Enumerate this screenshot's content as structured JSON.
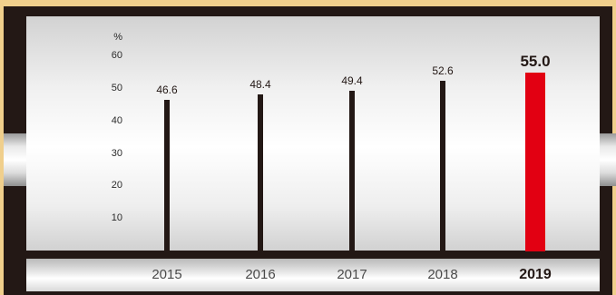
{
  "chart_data": {
    "type": "bar",
    "categories": [
      "2015",
      "2016",
      "2017",
      "2018",
      "2019"
    ],
    "values": [
      46.6,
      48.4,
      49.4,
      52.6,
      55.0
    ],
    "value_labels": [
      "46.6",
      "48.4",
      "49.4",
      "52.6",
      "55.0"
    ],
    "highlight_index": 4,
    "unit": "%",
    "yticks": [
      "10",
      "20",
      "30",
      "40",
      "50",
      "60"
    ],
    "ylim": [
      0,
      60
    ],
    "grid": false,
    "legend": "none",
    "colors": {
      "bar": "#231815",
      "highlight": "#e20012"
    }
  }
}
